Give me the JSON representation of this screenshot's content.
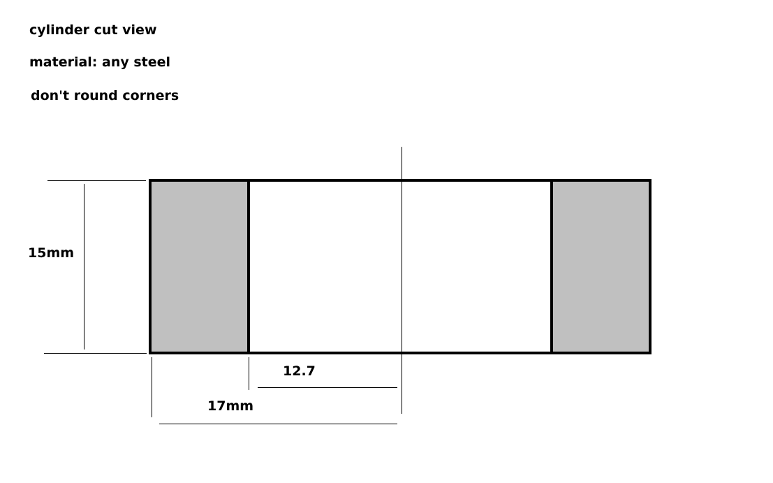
{
  "notes": {
    "title": "cylinder cut view",
    "material": "material: any steel",
    "corners": "don't round corners"
  },
  "dimensions": {
    "height": "15mm",
    "inner_radius": "12.7",
    "outer_radius": "17mm"
  },
  "colors": {
    "section_fill": "#c0c0c0",
    "outline": "#000000",
    "background": "#ffffff"
  }
}
